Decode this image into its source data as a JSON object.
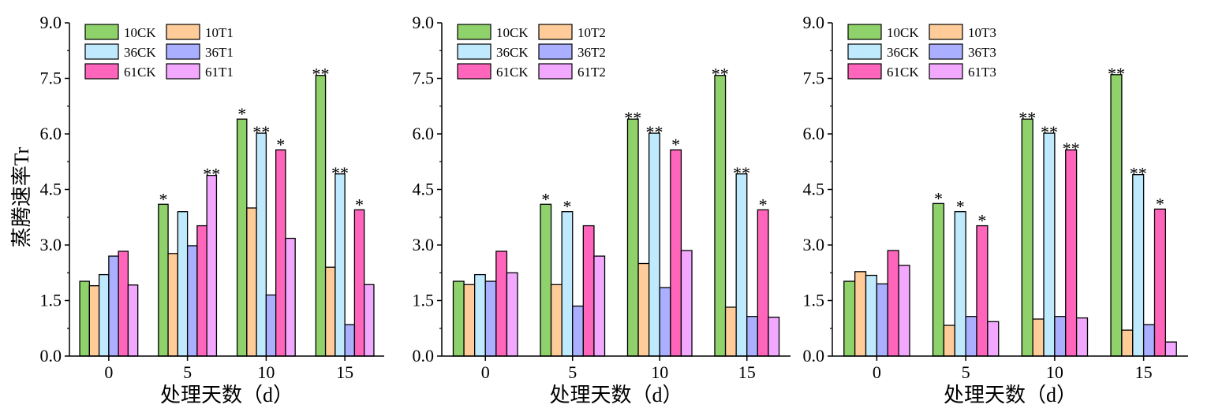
{
  "colors": {
    "10CK": "#8fd16a",
    "10T": "#ffcc99",
    "36CK": "#bfe9fd",
    "36T": "#aab0ff",
    "61CK": "#ff66bb",
    "61T": "#f3a8ff"
  },
  "chart_data": [
    {
      "type": "bar",
      "ylabel": "蒸腾速率Tr",
      "xlabel": "处理天数（d）",
      "ylim": [
        0,
        9
      ],
      "yticks": [
        "0.0",
        "1.5",
        "3.0",
        "4.5",
        "6.0",
        "7.5",
        "9.0"
      ],
      "categories": [
        "0",
        "5",
        "10",
        "15"
      ],
      "legend_position": "top-left",
      "series": [
        {
          "name": "10CK",
          "color_key": "10CK",
          "values": [
            2.02,
            4.1,
            6.4,
            7.58
          ],
          "sig": [
            "",
            "*",
            "*",
            "**"
          ]
        },
        {
          "name": "10T1",
          "color_key": "10T",
          "values": [
            1.9,
            2.77,
            4.0,
            2.4
          ],
          "sig": [
            "",
            "",
            "",
            ""
          ]
        },
        {
          "name": "36CK",
          "color_key": "36CK",
          "values": [
            2.2,
            3.9,
            6.02,
            4.92
          ],
          "sig": [
            "",
            "",
            "**",
            "**"
          ]
        },
        {
          "name": "36T1",
          "color_key": "36T",
          "values": [
            2.7,
            2.98,
            1.65,
            0.85
          ],
          "sig": [
            "",
            "",
            "",
            ""
          ]
        },
        {
          "name": "61CK",
          "color_key": "61CK",
          "values": [
            2.83,
            3.52,
            5.57,
            3.95
          ],
          "sig": [
            "",
            "",
            "*",
            "*"
          ]
        },
        {
          "name": "61T1",
          "color_key": "61T",
          "values": [
            1.92,
            4.88,
            3.18,
            1.93
          ],
          "sig": [
            "",
            "**",
            "",
            ""
          ]
        }
      ]
    },
    {
      "type": "bar",
      "ylabel": "",
      "xlabel": "处理天数（d）",
      "ylim": [
        0,
        9
      ],
      "yticks": [
        "0.0",
        "1.5",
        "3.0",
        "4.5",
        "6.0",
        "7.5",
        "9.0"
      ],
      "categories": [
        "0",
        "5",
        "10",
        "15"
      ],
      "legend_position": "top-left",
      "series": [
        {
          "name": "10CK",
          "color_key": "10CK",
          "values": [
            2.02,
            4.1,
            6.4,
            7.58
          ],
          "sig": [
            "",
            "*",
            "**",
            "**"
          ]
        },
        {
          "name": "10T2",
          "color_key": "10T",
          "values": [
            1.93,
            1.93,
            2.5,
            1.32
          ],
          "sig": [
            "",
            "",
            "",
            ""
          ]
        },
        {
          "name": "36CK",
          "color_key": "36CK",
          "values": [
            2.2,
            3.9,
            6.02,
            4.92
          ],
          "sig": [
            "",
            "*",
            "**",
            "**"
          ]
        },
        {
          "name": "36T2",
          "color_key": "36T",
          "values": [
            2.02,
            1.35,
            1.85,
            1.07
          ],
          "sig": [
            "",
            "",
            "",
            ""
          ]
        },
        {
          "name": "61CK",
          "color_key": "61CK",
          "values": [
            2.83,
            3.52,
            5.57,
            3.95
          ],
          "sig": [
            "",
            "",
            "*",
            "*"
          ]
        },
        {
          "name": "61T2",
          "color_key": "61T",
          "values": [
            2.25,
            2.7,
            2.85,
            1.05
          ],
          "sig": [
            "",
            "",
            "",
            ""
          ]
        }
      ]
    },
    {
      "type": "bar",
      "ylabel": "",
      "xlabel": "处理天数（d）",
      "ylim": [
        0,
        9
      ],
      "yticks": [
        "0.0",
        "1.5",
        "3.0",
        "4.5",
        "6.0",
        "7.5",
        "9.0"
      ],
      "categories": [
        "0",
        "5",
        "10",
        "15"
      ],
      "legend_position": "top-left",
      "series": [
        {
          "name": "10CK",
          "color_key": "10CK",
          "values": [
            2.02,
            4.12,
            6.4,
            7.6
          ],
          "sig": [
            "",
            "*",
            "**",
            "**"
          ]
        },
        {
          "name": "10T3",
          "color_key": "10T",
          "values": [
            2.28,
            0.83,
            1.0,
            0.7
          ],
          "sig": [
            "",
            "",
            "",
            ""
          ]
        },
        {
          "name": "36CK",
          "color_key": "36CK",
          "values": [
            2.18,
            3.9,
            6.02,
            4.9
          ],
          "sig": [
            "",
            "*",
            "**",
            "**"
          ]
        },
        {
          "name": "36T3",
          "color_key": "36T",
          "values": [
            1.95,
            1.07,
            1.07,
            0.85
          ],
          "sig": [
            "",
            "",
            "",
            ""
          ]
        },
        {
          "name": "61CK",
          "color_key": "61CK",
          "values": [
            2.85,
            3.52,
            5.57,
            3.97
          ],
          "sig": [
            "",
            "*",
            "**",
            "*"
          ]
        },
        {
          "name": "61T3",
          "color_key": "61T",
          "values": [
            2.45,
            0.93,
            1.03,
            0.38
          ],
          "sig": [
            "",
            "",
            "",
            ""
          ]
        }
      ]
    }
  ]
}
